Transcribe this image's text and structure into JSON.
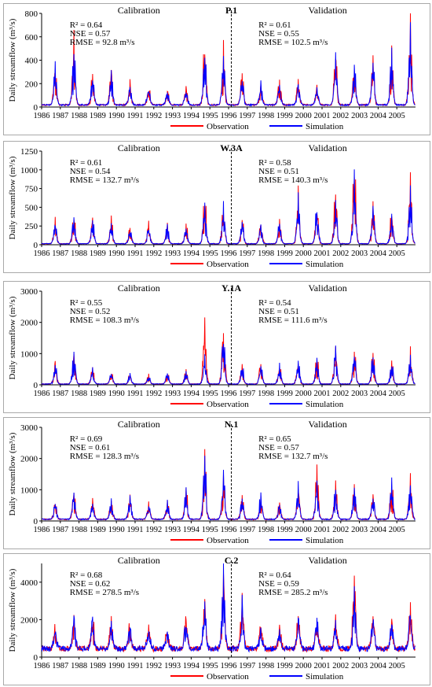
{
  "legend": {
    "observation": "Observation",
    "simulation": "Simulation"
  },
  "colors": {
    "observation": "#ff0000",
    "simulation": "#0000ff",
    "axis": "#000000",
    "divider": "#000000"
  },
  "chart_data": [
    {
      "type": "line",
      "title": "P.1",
      "ylabel": "Daily streamflow (m³/s)",
      "ylim": [
        0,
        800
      ],
      "yticks": [
        0,
        200,
        400,
        600,
        800
      ],
      "xticks": [
        "1986",
        "1987",
        "1988",
        "1989",
        "1990",
        "1991",
        "1992",
        "1993",
        "1994",
        "1995",
        "1996",
        "1997",
        "1998",
        "1999",
        "2000",
        "2001",
        "2002",
        "2003",
        "2004",
        "2005"
      ],
      "period_labels": {
        "calibration": "Calibration",
        "validation": "Validation"
      },
      "split_year": 1996,
      "stats": {
        "calibration": [
          "R² = 0.64",
          "NSE = 0.57",
          "RMSE = 92.8 m³/s"
        ],
        "validation": [
          "R² = 0.61",
          "NSE = 0.55",
          "RMSE = 102.5 m³/s"
        ]
      },
      "base": 20,
      "annual_peak_obs": [
        360,
        550,
        300,
        310,
        200,
        170,
        140,
        145,
        500,
        470,
        290,
        200,
        240,
        210,
        170,
        460,
        370,
        420,
        460,
        680
      ],
      "annual_peak_sim": [
        340,
        520,
        280,
        300,
        190,
        160,
        130,
        140,
        470,
        450,
        270,
        190,
        220,
        200,
        160,
        410,
        350,
        380,
        440,
        640
      ],
      "series": [
        {
          "name": "Observation"
        },
        {
          "name": "Simulation"
        }
      ]
    },
    {
      "type": "line",
      "title": "W.3A",
      "ylabel": "Daily streamflow (m³/s)",
      "ylim": [
        0,
        1250
      ],
      "yticks": [
        0,
        250,
        500,
        750,
        1000,
        1250
      ],
      "xticks": [
        "1986",
        "1987",
        "1988",
        "1989",
        "1990",
        "1991",
        "1992",
        "1993",
        "1994",
        "1995",
        "1996",
        "1997",
        "1998",
        "1999",
        "2000",
        "2001",
        "2002",
        "2003",
        "2004",
        "2005"
      ],
      "period_labels": {
        "calibration": "Calibration",
        "validation": "Validation"
      },
      "split_year": 1996,
      "stats": {
        "calibration": [
          "R² = 0.61",
          "NSE = 0.54",
          "RMSE = 132.7 m³/s"
        ],
        "validation": [
          "R² = 0.58",
          "NSE = 0.51",
          "RMSE = 140.3 m³/s"
        ]
      },
      "base": 15,
      "annual_peak_obs": [
        330,
        430,
        350,
        330,
        230,
        260,
        250,
        240,
        640,
        560,
        320,
        280,
        300,
        650,
        520,
        700,
        1000,
        560,
        430,
        780
      ],
      "annual_peak_sim": [
        310,
        400,
        330,
        300,
        210,
        240,
        240,
        230,
        600,
        520,
        300,
        260,
        280,
        600,
        500,
        650,
        880,
        540,
        410,
        740
      ],
      "series": [
        {
          "name": "Observation"
        },
        {
          "name": "Simulation"
        }
      ]
    },
    {
      "type": "line",
      "title": "Y.1A",
      "ylabel": "Daily streamflow (m³/s)",
      "ylim": [
        0,
        3000
      ],
      "yticks": [
        0,
        1000,
        2000,
        3000
      ],
      "xticks": [
        "1986",
        "1987",
        "1988",
        "1989",
        "1990",
        "1991",
        "1992",
        "1993",
        "1994",
        "1995",
        "1996",
        "1997",
        "1998",
        "1999",
        "2000",
        "2001",
        "2002",
        "2003",
        "2004",
        "2005"
      ],
      "period_labels": {
        "calibration": "Calibration",
        "validation": "Validation"
      },
      "split_year": 1996,
      "stats": {
        "calibration": [
          "R² = 0.55",
          "NSE = 0.52",
          "RMSE = 108.3 m³/s"
        ],
        "validation": [
          "R² = 0.54",
          "NSE = 0.51",
          "RMSE = 111.6 m³/s"
        ]
      },
      "base": 30,
      "annual_peak_obs": [
        760,
        1150,
        500,
        420,
        350,
        300,
        400,
        450,
        1750,
        2000,
        620,
        700,
        650,
        850,
        850,
        1200,
        1100,
        1000,
        700,
        1000
      ],
      "annual_peak_sim": [
        740,
        1100,
        480,
        400,
        330,
        280,
        380,
        420,
        1000,
        1500,
        600,
        680,
        620,
        800,
        800,
        1150,
        1050,
        950,
        680,
        950
      ],
      "series": [
        {
          "name": "Observation"
        },
        {
          "name": "Simulation"
        }
      ]
    },
    {
      "type": "line",
      "title": "N.1",
      "ylabel": "Daily streamflow (m³/s)",
      "ylim": [
        0,
        3000
      ],
      "yticks": [
        0,
        1000,
        2000,
        3000
      ],
      "xticks": [
        "1986",
        "1987",
        "1988",
        "1989",
        "1990",
        "1991",
        "1992",
        "1993",
        "1994",
        "1995",
        "1996",
        "1997",
        "1998",
        "1999",
        "2000",
        "2001",
        "2002",
        "2003",
        "2004",
        "2005"
      ],
      "period_labels": {
        "calibration": "Calibration",
        "validation": "Validation"
      },
      "split_year": 1996,
      "stats": {
        "calibration": [
          "R² = 0.69",
          "NSE = 0.61",
          "RMSE = 128.3 m³/s"
        ],
        "validation": [
          "R² = 0.65",
          "NSE = 0.57",
          "RMSE = 132.7 m³/s"
        ]
      },
      "base": 60,
      "annual_peak_obs": [
        620,
        950,
        600,
        650,
        800,
        550,
        600,
        1000,
        2000,
        1700,
        750,
        850,
        600,
        1150,
        1550,
        1200,
        1150,
        850,
        1300,
        1250
      ],
      "annual_peak_sim": [
        600,
        900,
        580,
        620,
        780,
        530,
        580,
        950,
        2050,
        1600,
        720,
        820,
        580,
        1100,
        1450,
        1150,
        1100,
        800,
        1250,
        1200
      ],
      "series": [
        {
          "name": "Observation"
        },
        {
          "name": "Simulation"
        }
      ]
    },
    {
      "type": "line",
      "title": "C.2",
      "ylabel": "Daily streamflow (m³/s)",
      "ylim": [
        0,
        5000
      ],
      "yticks": [
        0,
        2000,
        4000
      ],
      "xticks": [
        "1986",
        "1987",
        "1988",
        "1989",
        "1990",
        "1991",
        "1992",
        "1993",
        "1994",
        "1995",
        "1996",
        "1997",
        "1998",
        "1999",
        "2000",
        "2001",
        "2002",
        "2003",
        "2004",
        "2005"
      ],
      "period_labels": {
        "calibration": "Calibration",
        "validation": "Validation"
      },
      "split_year": 1996,
      "stats": {
        "calibration": [
          "R² = 0.68",
          "NSE = 0.62",
          "RMSE = 278.5 m³/s"
        ],
        "validation": [
          "R² = 0.64",
          "NSE = 0.59",
          "RMSE = 285.2 m³/s"
        ]
      },
      "base": 500,
      "annual_peak_obs": [
        1400,
        2200,
        2000,
        1900,
        1700,
        1600,
        1500,
        2000,
        2900,
        4800,
        3000,
        1700,
        1500,
        2300,
        2000,
        2000,
        4000,
        2200,
        1900,
        2400
      ],
      "annual_peak_sim": [
        1300,
        2100,
        1900,
        1800,
        1600,
        1500,
        1400,
        1900,
        2800,
        4700,
        2800,
        1650,
        1450,
        2200,
        1900,
        1900,
        3500,
        2100,
        1800,
        2400
      ],
      "series": [
        {
          "name": "Observation"
        },
        {
          "name": "Simulation"
        }
      ]
    }
  ]
}
